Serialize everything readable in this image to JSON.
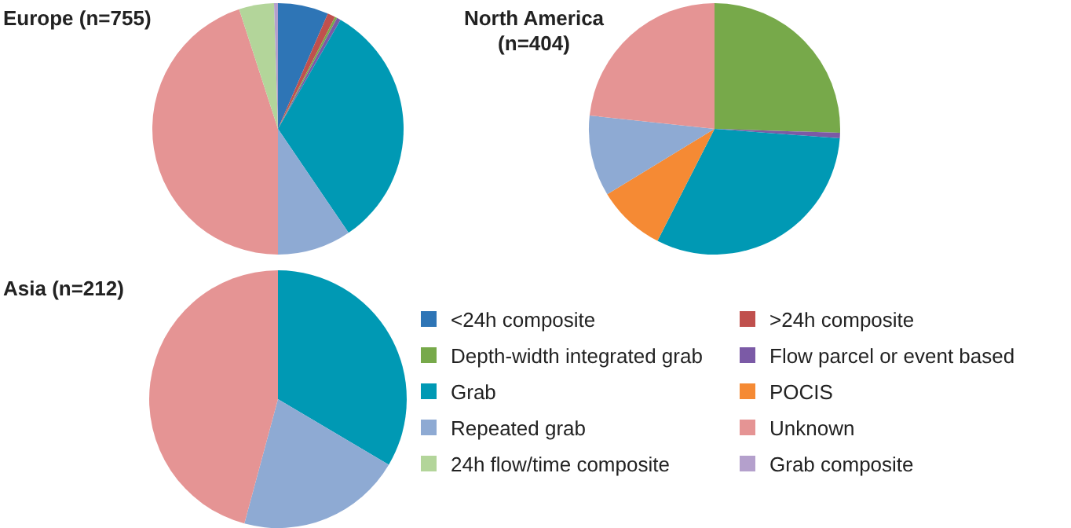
{
  "chart_data": [
    {
      "type": "pie",
      "title": "Europe (n=755)",
      "categories": [
        null,
        null,
        null,
        null,
        null,
        null,
        null,
        null,
        null
      ],
      "values": [
        6.5,
        1,
        0.3,
        0.5,
        32.2,
        9.5,
        45,
        4.5,
        0.5
      ],
      "colors": [
        "#2e75b6",
        "#c0504d",
        "#77a94a",
        "#7b5aa6",
        "#0099b4",
        "#8eaad3",
        "#e59494",
        "#b3d59a",
        "#b4a0cc"
      ]
    },
    {
      "type": "pie",
      "title": "North America (n=404)",
      "categories": [
        null,
        null,
        null,
        null,
        null,
        null
      ],
      "values": [
        25.5,
        0.7,
        31.3,
        8.8,
        10.4,
        23.3
      ],
      "colors": [
        "#77a94a",
        "#7b5aa6",
        "#0099b4",
        "#f58a34",
        "#8eaad3",
        "#e59494"
      ]
    },
    {
      "type": "pie",
      "title": "Asia (n=212)",
      "categories": [
        "<24h composite",
        ">24h composite",
        "Depth-width integrated grab",
        "Flow parcel or event based",
        "Grab",
        "POCIS",
        "Repeated grab",
        "Unknown",
        "24h flow/time composite",
        "Grab composite"
      ],
      "values": [
        0,
        0,
        0,
        0,
        33.5,
        0,
        20.7,
        45.8,
        0,
        0
      ],
      "colors": [
        "#2e75b6",
        "#c0504d",
        "#77a94a",
        "#7b5aa6",
        "#0099b4",
        "#f58a34",
        "#8eaad3",
        "#e59494",
        "#b3d59a",
        "#b4a0cc"
      ],
      "legend": "right"
    }
  ]
}
